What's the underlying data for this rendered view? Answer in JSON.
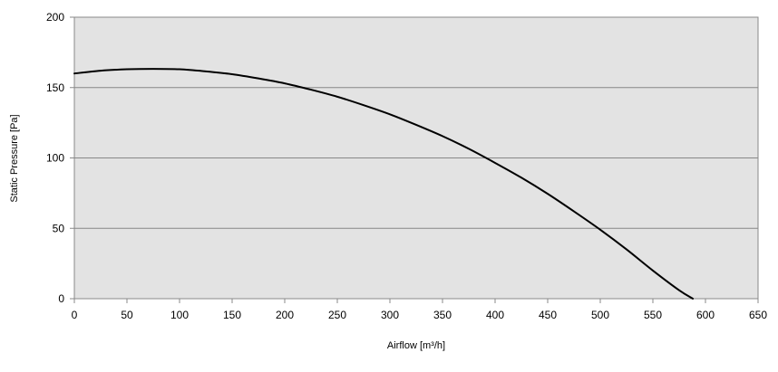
{
  "chart_data": {
    "type": "line",
    "title": "",
    "xlabel": "Airflow [m³/h]",
    "ylabel": "Static Pressure [Pa]",
    "xlim": [
      0,
      650
    ],
    "ylim": [
      0,
      200
    ],
    "x_ticks": [
      0,
      50,
      100,
      150,
      200,
      250,
      300,
      350,
      400,
      450,
      500,
      550,
      600,
      650
    ],
    "y_ticks": [
      0,
      50,
      100,
      150,
      200
    ],
    "grid": "horizontal",
    "legend": "none",
    "series": [
      {
        "x": [
          0,
          25,
          50,
          75,
          100,
          125,
          150,
          175,
          200,
          225,
          250,
          275,
          300,
          325,
          350,
          375,
          400,
          425,
          450,
          475,
          500,
          525,
          550,
          575,
          588
        ],
        "values": [
          160,
          162,
          163,
          163.3,
          163,
          161.5,
          159.5,
          156.5,
          153,
          148.5,
          143.5,
          137.5,
          131,
          123.5,
          115.5,
          106.5,
          96.5,
          86,
          74.5,
          62,
          49,
          35,
          20,
          6,
          0
        ]
      }
    ],
    "colors": {
      "plot_background": "#e3e3e3",
      "gridline": "#888888",
      "line": "#000000",
      "page_background": "#ffffff"
    }
  }
}
